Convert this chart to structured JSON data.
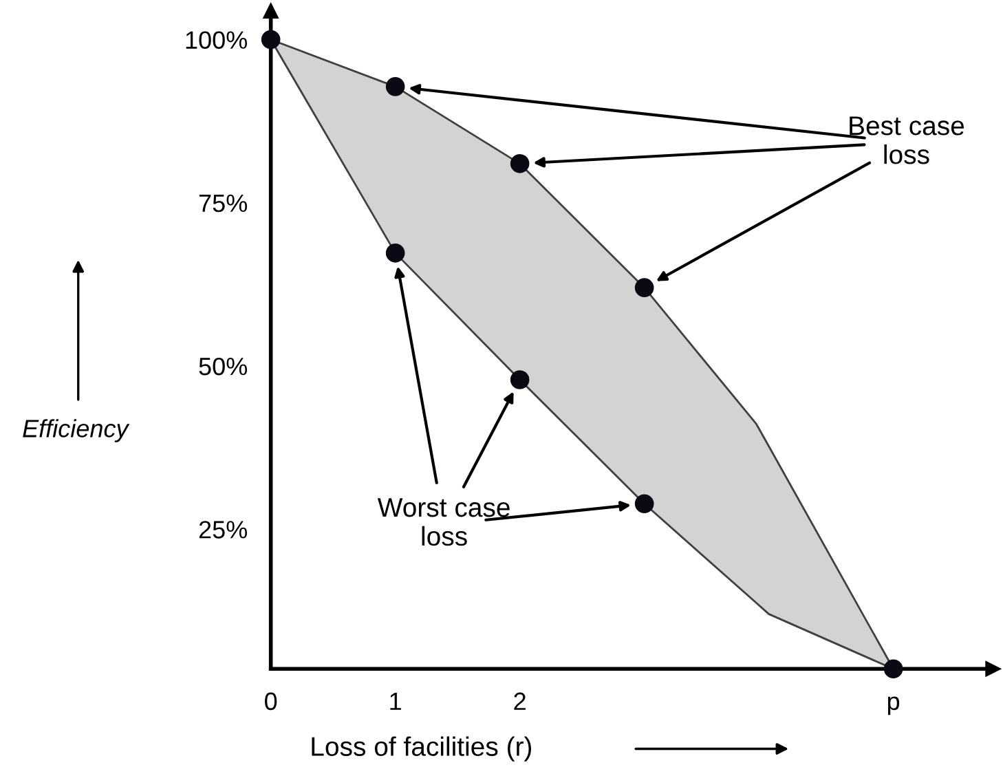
{
  "chart_data": {
    "type": "line",
    "xlabel": "Loss of facilities (r)",
    "ylabel": "Efficiency",
    "xlim": [
      0,
      5.8
    ],
    "ylim": [
      3.6,
      104.4
    ],
    "xticks": [
      0,
      1,
      2,
      {
        "value": 5,
        "label": "p"
      }
    ],
    "yticks": [
      {
        "value": 100,
        "label": "100%"
      },
      {
        "value": 75,
        "label": "75%"
      },
      {
        "value": 50,
        "label": "50%"
      },
      {
        "value": 25,
        "label": "25%"
      }
    ],
    "grid": false,
    "legend": false,
    "series": [
      {
        "color": "#404040",
        "marker": "none",
        "x": [
          0,
          1,
          2,
          3,
          3.9,
          4,
          5
        ],
        "values": [
          100,
          92.8,
          81.0,
          62.0,
          41.1,
          37.7,
          3.6
        ],
        "lower": [
          100,
          67.3,
          47.9,
          28.9,
          13.7,
          12.0,
          3.6
        ],
        "upper": [
          100,
          92.8,
          81.0,
          62.0,
          41.1,
          37.7,
          3.6
        ]
      },
      {
        "type": "scatter",
        "color": "#0a0a14",
        "marker": "circle",
        "x": [
          0,
          1,
          2,
          3,
          1,
          2,
          3,
          5
        ],
        "values": [
          100,
          92.8,
          81.0,
          62.0,
          67.3,
          47.9,
          28.9,
          3.6
        ]
      }
    ],
    "annotations": [
      "Best case\nloss",
      "Worst case\nloss"
    ]
  }
}
